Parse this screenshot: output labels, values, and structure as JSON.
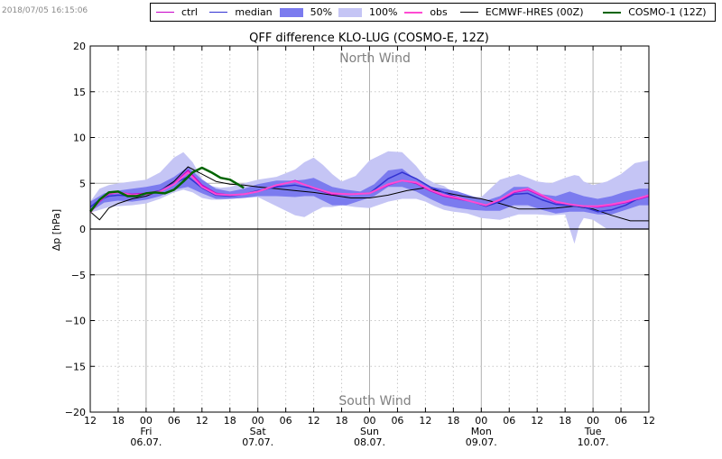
{
  "timestamp": "2018/07/05 16:15:06",
  "legend": [
    {
      "label": "ctrl",
      "color": "#c800c8",
      "kind": "line",
      "width": 1.5
    },
    {
      "label": "median",
      "color": "#3232d2",
      "kind": "line",
      "width": 1.5
    },
    {
      "label": "50%",
      "color": "#7b7bef",
      "kind": "patch"
    },
    {
      "label": "100%",
      "color": "#c5c5f5",
      "kind": "patch"
    },
    {
      "label": "obs",
      "color": "#ff4bd2",
      "kind": "line",
      "width": 2
    },
    {
      "label": "ECMWF-HRES (00Z)",
      "color": "#000000",
      "kind": "line",
      "width": 1
    },
    {
      "label": "COSMO-1 (12Z)",
      "color": "#006400",
      "kind": "line",
      "width": 2.5
    }
  ],
  "chart_data": {
    "type": "line",
    "title": "QFF difference KLO-LUG (COSMO-E, 12Z)",
    "ylabel": "Δp [hPa]",
    "xlabel": "",
    "xlim": [
      0,
      120
    ],
    "ylim": [
      -20,
      20
    ],
    "yticks": [
      -20,
      -15,
      -10,
      -5,
      0,
      5,
      10,
      15,
      20
    ],
    "xtick_labels": [
      "12",
      "18",
      "00",
      "06",
      "12",
      "18",
      "00",
      "06",
      "12",
      "18",
      "00",
      "06",
      "12",
      "18",
      "00",
      "06",
      "12",
      "18",
      "00",
      "06",
      "12"
    ],
    "day_labels": [
      {
        "at": 12,
        "weekday": "Fri",
        "date": "06.07."
      },
      {
        "at": 36,
        "weekday": "Sat",
        "date": "07.07."
      },
      {
        "at": 60,
        "weekday": "Sun",
        "date": "08.07."
      },
      {
        "at": 84,
        "weekday": "Mon",
        "date": "09.07."
      },
      {
        "at": 108,
        "weekday": "Tue",
        "date": "10.07."
      }
    ],
    "annotations": [
      {
        "text": "North Wind",
        "y": 18.7
      },
      {
        "text": "South Wind",
        "y": -18.7
      }
    ],
    "grid": true,
    "band_100": {
      "x": [
        0,
        2,
        4,
        6,
        9,
        12,
        15,
        18,
        20,
        22,
        24,
        26,
        28,
        30,
        33,
        36,
        40,
        44,
        46,
        48,
        50,
        52,
        54,
        57,
        60,
        64,
        67,
        70,
        72,
        74,
        76,
        78,
        81,
        84,
        88,
        92,
        96,
        99,
        102,
        104,
        105,
        106,
        108,
        111,
        114,
        117,
        120
      ],
      "upper": [
        3.0,
        4.4,
        4.8,
        5.0,
        5.2,
        5.4,
        6.2,
        7.8,
        8.4,
        7.3,
        5.5,
        4.7,
        4.5,
        4.6,
        5.0,
        5.4,
        5.7,
        6.5,
        7.3,
        7.8,
        7.0,
        6.0,
        5.2,
        5.8,
        7.5,
        8.5,
        8.4,
        6.9,
        5.6,
        5.0,
        4.7,
        4.0,
        3.6,
        3.5,
        5.4,
        6.0,
        5.2,
        5.0,
        5.6,
        5.9,
        5.8,
        5.2,
        4.8,
        5.2,
        6.0,
        7.2,
        7.5
      ],
      "lower": [
        1.8,
        2.1,
        2.4,
        2.5,
        2.6,
        2.8,
        3.3,
        4.0,
        4.3,
        4.0,
        3.4,
        3.2,
        3.2,
        3.3,
        3.4,
        3.5,
        2.5,
        1.5,
        1.3,
        1.9,
        2.4,
        2.4,
        2.6,
        2.4,
        2.3,
        3.0,
        3.3,
        3.3,
        3.0,
        2.5,
        2.1,
        1.9,
        1.7,
        1.2,
        1.0,
        1.6,
        1.6,
        1.5,
        1.6,
        -1.6,
        0.3,
        1.2,
        1.0,
        0.0,
        0.0,
        0.0,
        0.0
      ]
    },
    "band_50": {
      "x": [
        0,
        3,
        6,
        9,
        12,
        15,
        18,
        21,
        24,
        27,
        30,
        33,
        36,
        40,
        44,
        46,
        48,
        50,
        52,
        55,
        58,
        61,
        64,
        67,
        70,
        73,
        76,
        79,
        82,
        85,
        88,
        91,
        94,
        97,
        100,
        103,
        106,
        109,
        112,
        115,
        118,
        120
      ],
      "upper": [
        3.0,
        3.9,
        4.2,
        4.4,
        4.6,
        4.9,
        5.7,
        6.8,
        5.4,
        4.4,
        4.1,
        4.4,
        4.9,
        5.3,
        5.3,
        5.4,
        5.6,
        5.1,
        4.6,
        4.3,
        4.1,
        4.9,
        6.4,
        6.6,
        5.4,
        4.6,
        4.4,
        4.1,
        3.6,
        3.1,
        3.6,
        4.6,
        4.6,
        3.8,
        3.6,
        4.1,
        3.6,
        3.3,
        3.6,
        4.1,
        4.4,
        4.4
      ],
      "lower": [
        1.9,
        2.9,
        3.1,
        3.0,
        3.2,
        3.6,
        4.3,
        4.6,
        3.9,
        3.3,
        3.3,
        3.4,
        3.6,
        3.6,
        3.5,
        3.6,
        3.6,
        3.1,
        2.6,
        2.6,
        3.1,
        3.6,
        4.6,
        4.6,
        4.1,
        3.3,
        2.6,
        2.3,
        2.1,
        2.0,
        2.0,
        2.6,
        2.6,
        2.1,
        1.7,
        1.9,
        1.9,
        1.6,
        1.6,
        2.1,
        2.6,
        2.6
      ]
    },
    "series": [
      {
        "name": "ctrl",
        "color": "#c800c8",
        "width": 1.5,
        "x": [
          0,
          2,
          4,
          6,
          9,
          12,
          15,
          18,
          21,
          24,
          27,
          30,
          33,
          36,
          40,
          44,
          48,
          52,
          56,
          60,
          64,
          67,
          70,
          73,
          76,
          79,
          82,
          85,
          88,
          91,
          94,
          97,
          100,
          103,
          106,
          109,
          112,
          115,
          118,
          120
        ],
        "y": [
          2.0,
          3.0,
          3.8,
          4.0,
          3.8,
          3.9,
          4.2,
          5.0,
          6.4,
          4.8,
          3.9,
          3.7,
          3.8,
          4.1,
          4.7,
          5.3,
          4.4,
          3.8,
          3.8,
          3.9,
          4.8,
          5.3,
          5.0,
          4.2,
          3.6,
          3.3,
          3.0,
          2.5,
          3.1,
          4.0,
          4.3,
          3.6,
          2.9,
          2.7,
          2.5,
          2.4,
          2.6,
          2.9,
          3.3,
          3.6
        ]
      },
      {
        "name": "median",
        "color": "#3232d2",
        "width": 1.5,
        "x": [
          0,
          2,
          4,
          6,
          9,
          12,
          15,
          18,
          21,
          24,
          27,
          30,
          33,
          36,
          40,
          44,
          48,
          52,
          56,
          60,
          64,
          67,
          70,
          73,
          76,
          79,
          82,
          85,
          88,
          91,
          94,
          97,
          100,
          103,
          106,
          109,
          112,
          115,
          118,
          120
        ],
        "y": [
          2.4,
          3.2,
          3.6,
          3.7,
          3.6,
          3.8,
          4.2,
          5.0,
          5.7,
          4.5,
          3.7,
          3.6,
          3.8,
          4.2,
          4.6,
          4.8,
          4.4,
          3.9,
          3.8,
          3.9,
          5.5,
          6.2,
          5.5,
          4.6,
          4.0,
          3.4,
          3.0,
          2.5,
          3.0,
          3.8,
          3.9,
          3.2,
          2.7,
          2.6,
          2.4,
          1.9,
          2.1,
          2.6,
          3.4,
          3.7
        ]
      },
      {
        "name": "obs",
        "color": "#ff4bd2",
        "width": 2,
        "x": [
          0,
          2,
          4,
          6,
          9,
          12,
          15,
          18,
          21,
          24,
          27,
          30,
          33,
          36,
          40,
          44,
          48,
          52,
          56,
          60,
          64,
          67,
          70,
          73,
          76,
          79,
          82,
          85,
          88,
          91,
          94,
          97,
          100,
          103,
          106,
          109,
          112,
          115,
          118,
          120
        ],
        "y": [
          1.8,
          3.1,
          3.9,
          4.0,
          3.7,
          3.8,
          4.1,
          4.9,
          6.2,
          4.6,
          3.8,
          3.7,
          3.8,
          4.1,
          4.8,
          5.2,
          4.5,
          3.9,
          3.8,
          3.9,
          4.9,
          5.3,
          5.1,
          4.3,
          3.7,
          3.4,
          3.0,
          2.6,
          3.2,
          4.1,
          4.4,
          3.7,
          3.0,
          2.7,
          2.5,
          2.5,
          2.7,
          3.0,
          3.4,
          3.7
        ]
      },
      {
        "name": "ECMWF-HRES (00Z)",
        "color": "#000000",
        "width": 1,
        "x": [
          0,
          2,
          4,
          6,
          9,
          12,
          15,
          18,
          21,
          24,
          27,
          30,
          33,
          36,
          40,
          44,
          48,
          52,
          56,
          60,
          64,
          68,
          72,
          76,
          80,
          84,
          88,
          92,
          96,
          100,
          104,
          108,
          112,
          116,
          120
        ],
        "y": [
          1.9,
          1.0,
          2.3,
          2.8,
          3.3,
          3.6,
          4.2,
          5.2,
          6.8,
          6.0,
          5.2,
          4.9,
          4.8,
          4.6,
          4.4,
          4.2,
          4.0,
          3.7,
          3.4,
          3.4,
          3.7,
          4.2,
          4.5,
          4.0,
          3.6,
          3.3,
          2.8,
          2.2,
          2.2,
          2.3,
          2.5,
          2.2,
          1.5,
          0.9,
          0.9
        ]
      },
      {
        "name": "COSMO-1 (12Z)",
        "color": "#006400",
        "width": 2.5,
        "x": [
          0,
          2,
          4,
          6,
          8,
          10,
          12,
          14,
          16,
          18,
          20,
          22,
          24,
          26,
          28,
          30,
          33
        ],
        "y": [
          1.9,
          3.2,
          4.0,
          4.1,
          3.6,
          3.6,
          3.9,
          4.0,
          3.9,
          4.3,
          5.2,
          6.2,
          6.7,
          6.2,
          5.6,
          5.4,
          4.5
        ]
      }
    ]
  }
}
